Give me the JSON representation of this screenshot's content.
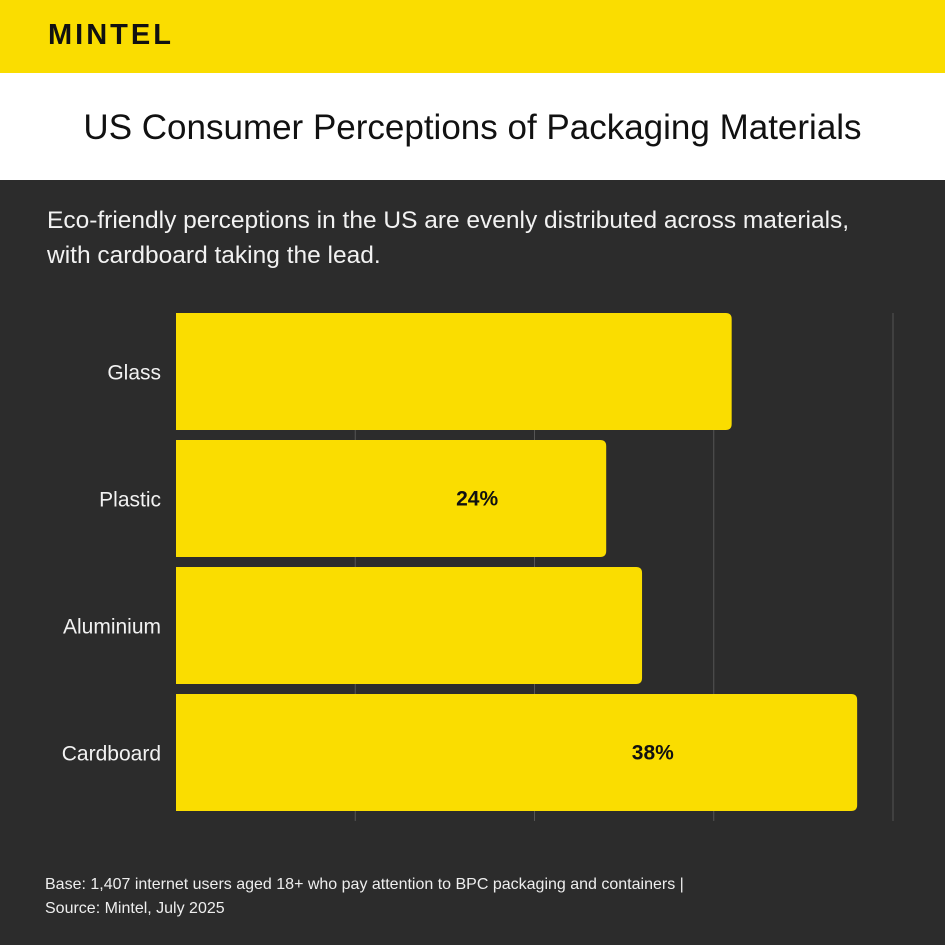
{
  "brand": {
    "logo": "MINTEL",
    "accent_color": "#fadd00"
  },
  "header": {
    "title": "US Consumer Perceptions of Packaging Materials"
  },
  "subtitle": "Eco-friendly perceptions in the US are evenly distributed across materials, with cardboard taking the lead.",
  "chart_data": {
    "type": "bar",
    "orientation": "horizontal",
    "categories": [
      "Glass",
      "Plastic",
      "Aluminium",
      "Cardboard"
    ],
    "values": [
      31,
      24,
      26,
      38
    ],
    "data_labels": [
      "",
      "24%",
      "",
      "38%"
    ],
    "unit": "%",
    "xlim": [
      0,
      40
    ],
    "grid": true,
    "bar_color": "#fadd00",
    "background_color": "#2c2c2c"
  },
  "footnote": {
    "line1": "Base: 1,407 internet users aged 18+ who pay attention to BPC packaging and containers |",
    "line2": "Source: Mintel, July 2025"
  }
}
